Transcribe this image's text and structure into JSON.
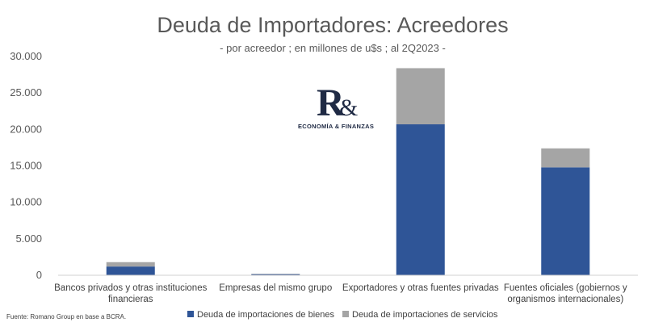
{
  "chart_data": {
    "type": "bar",
    "stacked": true,
    "title": "Deuda de Importadores: Acreedores",
    "subtitle": "- por acreedor ; en millones de u$s ; al 2Q2023 -",
    "categories": [
      [
        "Bancos privados y otras instituciones",
        "financieras"
      ],
      [
        "Empresas del mismo grupo"
      ],
      [
        "Exportadores y otras fuentes privadas"
      ],
      [
        "Fuentes oficiales (gobiernos y",
        "organismos internacionales)"
      ]
    ],
    "series": [
      {
        "name": "Deuda de importaciones de bienes",
        "color": "#2F5597",
        "values": [
          1200,
          150,
          20700,
          14800
        ]
      },
      {
        "name": "Deuda de importaciones de servicios",
        "color": "#A5A5A5",
        "values": [
          600,
          50,
          7700,
          2600
        ]
      }
    ],
    "ylim": [
      0,
      30000
    ],
    "yticks": [
      0,
      5000,
      10000,
      15000,
      20000,
      25000,
      30000
    ],
    "ytick_labels": [
      "0",
      "5.000",
      "10.000",
      "15.000",
      "20.000",
      "25.000",
      "30.000"
    ],
    "grid": false,
    "legend_position": "bottom"
  },
  "logo": {
    "letter": "R",
    "amp": "&",
    "tagline": "ECONOMÍA & FINANZAS"
  },
  "source": "Fuente: Romano Group en base a BCRA."
}
